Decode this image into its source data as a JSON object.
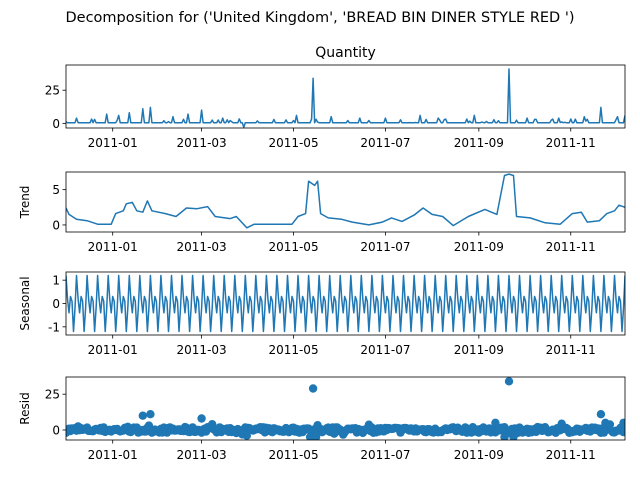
{
  "figure": {
    "suptitle": "Decomposition for ('United Kingdom', 'BREAD BIN DINER STYLE RED ')"
  },
  "colors": {
    "line": "#1f77b4",
    "marker": "#1f77b4",
    "axis": "#000000",
    "zero_line": "#000000"
  },
  "chart_data": [
    {
      "type": "line",
      "title": "Quantity",
      "ylabel": "",
      "x_range": [
        "2011-12-01",
        "2012-12-07"
      ],
      "ylim": [
        -3.5,
        44
      ],
      "y_ticks": [
        0,
        25
      ],
      "x_tick_labels": [
        "2011-01",
        "2011-03",
        "2011-05",
        "2011-07",
        "2011-09",
        "2011-11"
      ],
      "x_tick_dates": [
        "2011-01-01",
        "2011-03-01",
        "2011-05-01",
        "2011-07-01",
        "2011-09-01",
        "2011-11-01"
      ],
      "baseline": 0.5,
      "spikes": [
        {
          "x": "2010-12-08",
          "y": 4
        },
        {
          "x": "2010-12-20",
          "y": 3
        },
        {
          "x": "2010-12-28",
          "y": 7
        },
        {
          "x": "2011-01-05",
          "y": 6
        },
        {
          "x": "2011-01-12",
          "y": 8
        },
        {
          "x": "2011-01-21",
          "y": 11
        },
        {
          "x": "2011-01-26",
          "y": 12
        },
        {
          "x": "2011-02-10",
          "y": 5
        },
        {
          "x": "2011-02-20",
          "y": 7
        },
        {
          "x": "2011-03-01",
          "y": 10
        },
        {
          "x": "2011-03-15",
          "y": 4
        },
        {
          "x": "2011-03-29",
          "y": -3
        },
        {
          "x": "2011-04-18",
          "y": 3
        },
        {
          "x": "2011-05-03",
          "y": 6
        },
        {
          "x": "2011-05-14",
          "y": 34
        },
        {
          "x": "2011-05-26",
          "y": 5
        },
        {
          "x": "2011-06-14",
          "y": 4
        },
        {
          "x": "2011-07-01",
          "y": 4
        },
        {
          "x": "2011-07-24",
          "y": 6
        },
        {
          "x": "2011-08-05",
          "y": 4
        },
        {
          "x": "2011-08-29",
          "y": 6
        },
        {
          "x": "2011-09-21",
          "y": 41
        },
        {
          "x": "2011-10-03",
          "y": 4
        },
        {
          "x": "2011-10-24",
          "y": 4
        },
        {
          "x": "2011-11-10",
          "y": 5
        },
        {
          "x": "2011-11-21",
          "y": 12
        },
        {
          "x": "2011-12-02",
          "y": 5
        },
        {
          "x": "2011-12-07",
          "y": 6
        }
      ]
    },
    {
      "type": "line",
      "title": "",
      "ylabel": "Trend",
      "x_range": [
        "2011-12-01",
        "2012-12-07"
      ],
      "ylim": [
        -1.0,
        7.5
      ],
      "y_ticks": [
        0,
        5
      ],
      "x_tick_labels": [
        "2011-01",
        "2011-03",
        "2011-05",
        "2011-07",
        "2011-09",
        "2011-11"
      ],
      "x_tick_dates": [
        "2011-01-01",
        "2011-03-01",
        "2011-05-01",
        "2011-07-01",
        "2011-09-01",
        "2011-11-01"
      ],
      "points": [
        {
          "x": "2010-12-01",
          "y": 2.4
        },
        {
          "x": "2010-12-03",
          "y": 1.5
        },
        {
          "x": "2010-12-08",
          "y": 0.8
        },
        {
          "x": "2010-12-15",
          "y": 0.6
        },
        {
          "x": "2010-12-22",
          "y": 0.1
        },
        {
          "x": "2010-12-31",
          "y": 0.1
        },
        {
          "x": "2011-01-03",
          "y": 1.6
        },
        {
          "x": "2011-01-08",
          "y": 2.0
        },
        {
          "x": "2011-01-10",
          "y": 3.0
        },
        {
          "x": "2011-01-14",
          "y": 3.2
        },
        {
          "x": "2011-01-17",
          "y": 2.0
        },
        {
          "x": "2011-01-21",
          "y": 1.8
        },
        {
          "x": "2011-01-24",
          "y": 3.4
        },
        {
          "x": "2011-01-27",
          "y": 2.0
        },
        {
          "x": "2011-02-05",
          "y": 1.6
        },
        {
          "x": "2011-02-12",
          "y": 1.2
        },
        {
          "x": "2011-02-19",
          "y": 2.4
        },
        {
          "x": "2011-02-26",
          "y": 2.3
        },
        {
          "x": "2011-03-05",
          "y": 2.6
        },
        {
          "x": "2011-03-10",
          "y": 1.2
        },
        {
          "x": "2011-03-20",
          "y": 0.9
        },
        {
          "x": "2011-03-24",
          "y": 1.2
        },
        {
          "x": "2011-03-31",
          "y": -0.4
        },
        {
          "x": "2011-04-05",
          "y": 0.1
        },
        {
          "x": "2011-04-15",
          "y": 0.1
        },
        {
          "x": "2011-04-30",
          "y": 0.1
        },
        {
          "x": "2011-05-04",
          "y": 1.2
        },
        {
          "x": "2011-05-09",
          "y": 1.6
        },
        {
          "x": "2011-05-11",
          "y": 6.2
        },
        {
          "x": "2011-05-15",
          "y": 5.6
        },
        {
          "x": "2011-05-17",
          "y": 6.2
        },
        {
          "x": "2011-05-19",
          "y": 1.6
        },
        {
          "x": "2011-05-24",
          "y": 1.0
        },
        {
          "x": "2011-06-02",
          "y": 0.8
        },
        {
          "x": "2011-06-09",
          "y": 0.4
        },
        {
          "x": "2011-06-20",
          "y": 0.0
        },
        {
          "x": "2011-06-29",
          "y": 0.4
        },
        {
          "x": "2011-07-05",
          "y": 1.0
        },
        {
          "x": "2011-07-12",
          "y": 0.5
        },
        {
          "x": "2011-07-20",
          "y": 1.4
        },
        {
          "x": "2011-07-26",
          "y": 2.4
        },
        {
          "x": "2011-08-01",
          "y": 1.5
        },
        {
          "x": "2011-08-08",
          "y": 1.2
        },
        {
          "x": "2011-08-15",
          "y": -0.1
        },
        {
          "x": "2011-08-25",
          "y": 1.2
        },
        {
          "x": "2011-09-05",
          "y": 2.2
        },
        {
          "x": "2011-09-13",
          "y": 1.5
        },
        {
          "x": "2011-09-18",
          "y": 7.0
        },
        {
          "x": "2011-09-21",
          "y": 7.2
        },
        {
          "x": "2011-09-24",
          "y": 7.0
        },
        {
          "x": "2011-09-26",
          "y": 1.2
        },
        {
          "x": "2011-10-05",
          "y": 1.0
        },
        {
          "x": "2011-10-15",
          "y": 0.3
        },
        {
          "x": "2011-10-25",
          "y": 0.1
        },
        {
          "x": "2011-11-02",
          "y": 1.6
        },
        {
          "x": "2011-11-08",
          "y": 1.8
        },
        {
          "x": "2011-11-12",
          "y": 0.4
        },
        {
          "x": "2011-11-20",
          "y": 0.6
        },
        {
          "x": "2011-11-25",
          "y": 1.6
        },
        {
          "x": "2011-11-30",
          "y": 2.0
        },
        {
          "x": "2011-12-03",
          "y": 2.8
        },
        {
          "x": "2011-12-07",
          "y": 2.5
        }
      ]
    },
    {
      "type": "line",
      "title": "",
      "ylabel": "Seasonal",
      "x_range": [
        "2011-12-01",
        "2012-12-07"
      ],
      "ylim": [
        -1.35,
        1.35
      ],
      "y_ticks": [
        -1,
        0,
        1
      ],
      "x_tick_labels": [
        "2011-01",
        "2011-03",
        "2011-05",
        "2011-07",
        "2011-09",
        "2011-11"
      ],
      "x_tick_dates": [
        "2011-01-01",
        "2011-03-01",
        "2011-05-01",
        "2011-07-01",
        "2011-09-01",
        "2011-11-01"
      ],
      "period_days": 7,
      "pattern": [
        1.2,
        0.2,
        -0.4,
        0.3,
        0.1,
        -1.2,
        -0.2
      ]
    },
    {
      "type": "scatter",
      "title": "",
      "ylabel": "Resid",
      "x_range": [
        "2011-12-01",
        "2012-12-07"
      ],
      "ylim": [
        -7,
        37
      ],
      "y_ticks": [
        0,
        25
      ],
      "x_tick_labels": [
        "2011-01",
        "2011-03",
        "2011-05",
        "2011-07",
        "2011-09",
        "2011-11"
      ],
      "x_tick_dates": [
        "2011-01-01",
        "2011-03-01",
        "2011-05-01",
        "2011-07-01",
        "2011-09-01",
        "2011-11-01"
      ],
      "zero_line": true,
      "outliers": [
        {
          "x": "2011-01-21",
          "y": 10
        },
        {
          "x": "2011-01-26",
          "y": 11
        },
        {
          "x": "2011-03-01",
          "y": 8
        },
        {
          "x": "2011-03-31",
          "y": -4
        },
        {
          "x": "2011-05-12",
          "y": -5
        },
        {
          "x": "2011-05-14",
          "y": 29
        },
        {
          "x": "2011-05-16",
          "y": -5
        },
        {
          "x": "2011-09-12",
          "y": 5
        },
        {
          "x": "2011-09-18",
          "y": -5
        },
        {
          "x": "2011-09-21",
          "y": 34
        },
        {
          "x": "2011-09-24",
          "y": -5
        },
        {
          "x": "2011-11-21",
          "y": 11
        },
        {
          "x": "2011-12-06",
          "y": 5
        }
      ]
    }
  ]
}
